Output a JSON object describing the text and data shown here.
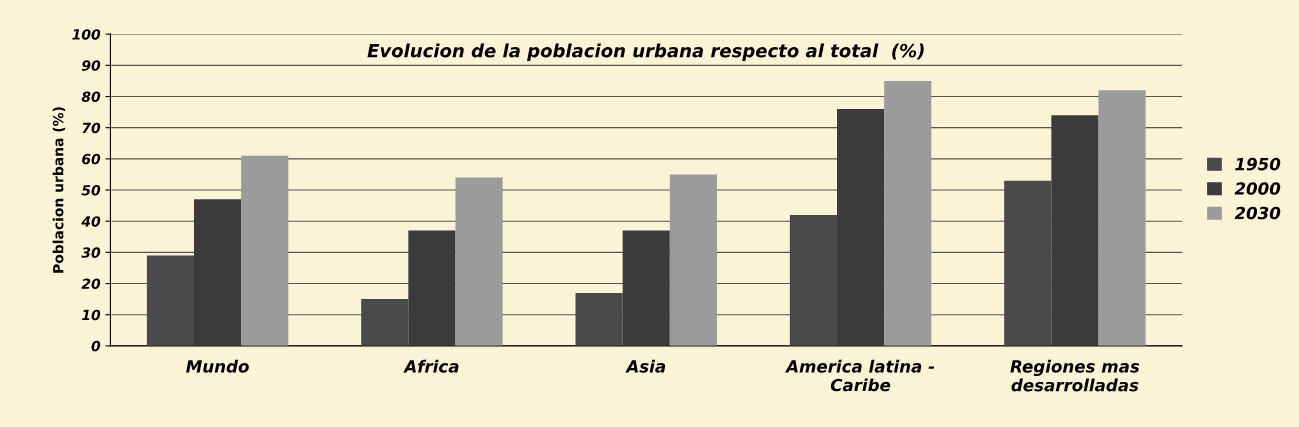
{
  "chart_data": {
    "type": "bar",
    "title": "Evolucion de la poblacion urbana respecto al total  (%)",
    "ylabel": "Poblacion urbana (%)",
    "categories": [
      "Mundo",
      "Africa",
      "Asia",
      "America latina -\nCaribe",
      "Regiones mas\ndesarrolladas"
    ],
    "series": [
      {
        "name": "1950",
        "color": "#4a4a4a",
        "values": [
          29,
          15,
          17,
          42,
          53
        ]
      },
      {
        "name": "2000",
        "color": "#3b3b3b",
        "values": [
          47,
          37,
          37,
          76,
          74
        ]
      },
      {
        "name": "2030",
        "color": "#9b9b9b",
        "values": [
          61,
          54,
          55,
          85,
          82
        ]
      }
    ],
    "ylim": [
      0,
      100
    ],
    "yticks": [
      0,
      10,
      20,
      30,
      40,
      50,
      60,
      70,
      80,
      90,
      100
    ],
    "grid": "y",
    "legend": "right"
  }
}
